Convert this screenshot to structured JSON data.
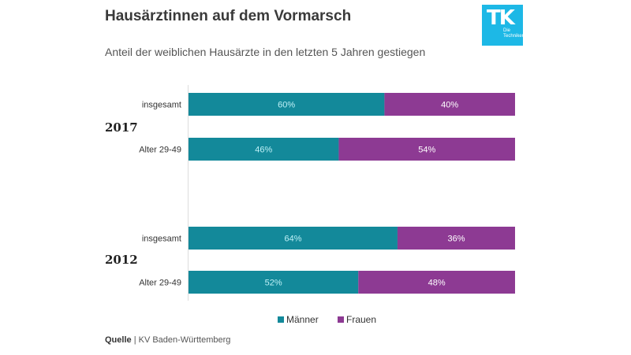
{
  "header": {
    "title": "Hausärztinnen auf dem Vormarsch",
    "subtitle": "Anteil der weiblichen Hausärzte in den letzten 5 Jahren gestiegen"
  },
  "logo": {
    "text": "TK",
    "subtext": "Die Techniker",
    "color": "#1db8e6"
  },
  "chart_data": {
    "type": "bar",
    "orientation": "horizontal",
    "stacked": true,
    "percent_scale": true,
    "xlim": [
      0,
      100
    ],
    "groups": [
      {
        "label": "2017",
        "categories": [
          "insgesamt",
          "Alter 29-49"
        ]
      },
      {
        "label": "2012",
        "categories": [
          "insgesamt",
          "Alter 29-49"
        ]
      }
    ],
    "series": [
      {
        "name": "Männer",
        "color": "#13899a",
        "values": [
          60,
          46,
          64,
          52
        ]
      },
      {
        "name": "Frauen",
        "color": "#8d3a93",
        "values": [
          40,
          54,
          36,
          48
        ]
      }
    ],
    "value_suffix": "%",
    "legend_position": "bottom"
  },
  "source": {
    "label": "Quelle",
    "text": "| KV Baden-Württemberg"
  }
}
